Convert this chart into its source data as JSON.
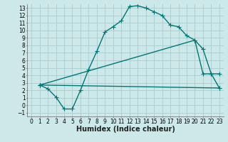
{
  "xlabel": "Humidex (Indice chaleur)",
  "bg_color": "#cce8e8",
  "grid_color": "#aacccc",
  "line_color": "#007777",
  "xlim": [
    -0.5,
    23.5
  ],
  "ylim": [
    -1.5,
    13.5
  ],
  "xticks": [
    0,
    1,
    2,
    3,
    4,
    5,
    6,
    7,
    8,
    9,
    10,
    11,
    12,
    13,
    14,
    15,
    16,
    17,
    18,
    19,
    20,
    21,
    22,
    23
  ],
  "yticks": [
    -1,
    0,
    1,
    2,
    3,
    4,
    5,
    6,
    7,
    8,
    9,
    10,
    11,
    12,
    13
  ],
  "curve1_x": [
    1,
    2,
    3,
    4,
    5,
    6,
    7,
    8,
    9,
    10,
    11,
    12,
    13,
    14,
    15,
    16,
    17,
    18,
    19,
    20,
    21,
    22,
    23
  ],
  "curve1_y": [
    2.7,
    2.2,
    1.1,
    -0.5,
    -0.5,
    2.0,
    4.8,
    7.2,
    9.8,
    10.5,
    11.3,
    13.2,
    13.3,
    13.0,
    12.5,
    12.0,
    10.7,
    10.5,
    9.3,
    8.7,
    4.2,
    4.2,
    2.3
  ],
  "curve2_x": [
    1,
    20,
    21,
    22,
    23
  ],
  "curve2_y": [
    2.7,
    8.7,
    7.5,
    4.2,
    4.2
  ],
  "curve3_x": [
    1,
    23
  ],
  "curve3_y": [
    2.7,
    2.3
  ],
  "markersize": 4,
  "linewidth": 1.0,
  "xlabel_fontsize": 7,
  "tick_fontsize": 5.5
}
